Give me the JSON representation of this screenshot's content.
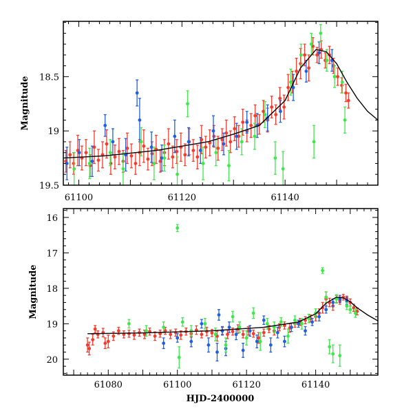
{
  "chart_data": [
    {
      "type": "scatter",
      "panel": "top",
      "title": "",
      "xlabel": "",
      "ylabel": "Magnitude",
      "xlim": [
        61097,
        61158
      ],
      "ylim": [
        19.5,
        17.99
      ],
      "y_inverted": true,
      "xticks": [
        61100,
        61120,
        61140
      ],
      "xtick_labels": [
        "61100",
        "61120",
        "61140"
      ],
      "yticks": [
        18.5,
        19,
        19.5
      ],
      "ytick_labels": [
        "18.5",
        "19",
        "19.5"
      ],
      "grid": false,
      "legend": "none",
      "fit_curve": {
        "name": "model fit",
        "color": "#000000",
        "x": [
          61097,
          61105,
          61115,
          61125,
          61130,
          61135,
          61140,
          61143,
          61146,
          61148,
          61150,
          61152,
          61154,
          61156,
          61158
        ],
        "y": [
          19.25,
          19.23,
          19.18,
          19.1,
          19.03,
          18.95,
          18.72,
          18.42,
          18.25,
          18.27,
          18.38,
          18.55,
          18.7,
          18.82,
          18.9
        ]
      },
      "series": [
        {
          "name": "red",
          "color": "#f23c2e",
          "x": [
            61097.5,
            61098.3,
            61099,
            61099.8,
            61100.6,
            61101.4,
            61102.2,
            61103,
            61103.8,
            61104.6,
            61105.4,
            61106.2,
            61107,
            61107.8,
            61108.6,
            61109.4,
            61110.2,
            61111,
            61111.8,
            61112.6,
            61113.4,
            61114.2,
            61115,
            61115.8,
            61116.6,
            61117.4,
            61118.2,
            61119,
            61119.8,
            61120.6,
            61121.4,
            61122.2,
            61123,
            61123.8,
            61124.6,
            61125.4,
            61126.2,
            61127,
            61127.8,
            61128.6,
            61129.4,
            61130.2,
            61131,
            61131.8,
            61132.6,
            61133.4,
            61134.2,
            61135,
            61135.8,
            61136.6,
            61137.4,
            61138.2,
            61139,
            61139.8,
            61140.6,
            61141.4,
            61142.2,
            61143,
            61143.8,
            61144.6,
            61145.4,
            61146.2,
            61147,
            61147.8,
            61148.6,
            61149.4,
            61150.2,
            61151,
            61151.8,
            61152.3
          ],
          "y": [
            19.28,
            19.22,
            19.3,
            19.18,
            19.25,
            19.2,
            19.32,
            19.15,
            19.27,
            19.22,
            19.12,
            19.3,
            19.24,
            19.19,
            19.28,
            19.16,
            19.23,
            19.3,
            19.2,
            19.14,
            19.26,
            19.21,
            19.17,
            19.28,
            19.2,
            19.12,
            19.24,
            19.19,
            19.15,
            19.22,
            19.1,
            19.18,
            19.24,
            19.08,
            19.15,
            19.11,
            19.05,
            19.16,
            19.08,
            19.02,
            19.1,
            18.98,
            19.05,
            18.92,
            19.0,
            18.95,
            18.86,
            18.94,
            18.82,
            18.9,
            18.78,
            18.85,
            18.7,
            18.78,
            18.6,
            18.55,
            18.45,
            18.38,
            18.3,
            18.42,
            18.22,
            18.3,
            18.25,
            18.35,
            18.3,
            18.4,
            18.5,
            18.58,
            18.65,
            18.72
          ],
          "err": [
            0.1,
            0.12,
            0.1,
            0.14,
            0.11,
            0.12,
            0.1,
            0.15,
            0.1,
            0.12,
            0.13,
            0.1,
            0.11,
            0.12,
            0.1,
            0.14,
            0.11,
            0.1,
            0.12,
            0.15,
            0.1,
            0.11,
            0.13,
            0.1,
            0.12,
            0.14,
            0.1,
            0.11,
            0.13,
            0.1,
            0.12,
            0.1,
            0.11,
            0.13,
            0.1,
            0.12,
            0.1,
            0.11,
            0.1,
            0.12,
            0.1,
            0.11,
            0.1,
            0.12,
            0.1,
            0.11,
            0.1,
            0.09,
            0.1,
            0.11,
            0.1,
            0.09,
            0.1,
            0.11,
            0.12,
            0.1,
            0.12,
            0.14,
            0.1,
            0.12,
            0.08,
            0.07,
            0.08,
            0.07,
            0.08,
            0.07,
            0.08,
            0.07,
            0.08,
            0.07
          ]
        },
        {
          "name": "blue",
          "color": "#1f5fe0",
          "x": [
            61097.7,
            61100.1,
            61102.6,
            61105.1,
            61106.6,
            61109.1,
            61111.3,
            61111.8,
            61114.1,
            61116.1,
            61118.6,
            61121.3,
            61123.6,
            61126.1,
            61128.1,
            61130.6,
            61132.6,
            61134.6,
            61136.6,
            61139.1,
            61141.6,
            61144.1,
            61146.6,
            61149.1
          ],
          "y": [
            19.3,
            19.2,
            19.28,
            18.95,
            19.1,
            19.22,
            18.65,
            18.9,
            19.15,
            19.25,
            19.05,
            19.1,
            19.18,
            19.0,
            19.12,
            19.05,
            18.92,
            18.95,
            18.88,
            18.82,
            18.6,
            18.45,
            18.28,
            18.35
          ],
          "err": [
            0.15,
            0.12,
            0.14,
            0.1,
            0.12,
            0.15,
            0.12,
            0.2,
            0.14,
            0.12,
            0.15,
            0.13,
            0.12,
            0.14,
            0.1,
            0.12,
            0.1,
            0.11,
            0.12,
            0.1,
            0.12,
            0.1,
            0.1,
            0.1
          ]
        },
        {
          "name": "green",
          "color": "#3ee84a",
          "x": [
            61099.1,
            61102.1,
            61106.1,
            61108.6,
            61112.1,
            61114.6,
            61116.6,
            61119.1,
            61121.1,
            61124.1,
            61126.6,
            61129.1,
            61131.6,
            61134.1,
            61136.1,
            61138.1,
            61139.6,
            61141.1,
            61143.1,
            61145.1,
            61146.9,
            61148.1,
            61149.6,
            61151.1,
            61151.6,
            61145.6
          ],
          "y": [
            19.35,
            19.3,
            19.2,
            19.35,
            19.1,
            19.3,
            19.25,
            19.4,
            18.75,
            19.3,
            19.2,
            19.32,
            19.1,
            19.05,
            18.85,
            19.25,
            19.35,
            18.55,
            18.3,
            18.2,
            18.1,
            18.35,
            18.5,
            18.55,
            18.9,
            19.1
          ],
          "err": [
            0.15,
            0.14,
            0.12,
            0.15,
            0.13,
            0.15,
            0.12,
            0.16,
            0.12,
            0.15,
            0.12,
            0.14,
            0.12,
            0.12,
            0.12,
            0.15,
            0.16,
            0.12,
            0.1,
            0.1,
            0.08,
            0.1,
            0.1,
            0.1,
            0.12,
            0.15
          ]
        }
      ]
    },
    {
      "type": "scatter",
      "panel": "bottom",
      "title": "",
      "xlabel": "HJD-2400000",
      "ylabel": "Magnitude",
      "xlim": [
        61067,
        61158
      ],
      "ylim": [
        20.45,
        15.75
      ],
      "y_inverted": true,
      "xticks": [
        61080,
        61100,
        61120,
        61140
      ],
      "xtick_labels": [
        "61080",
        "61100",
        "61120",
        "61140"
      ],
      "yticks": [
        16,
        17,
        18,
        19,
        20
      ],
      "ytick_labels": [
        "16",
        "17",
        "18",
        "19",
        "20"
      ],
      "grid": false,
      "legend": "none",
      "fit_curve": {
        "name": "model fit",
        "color": "#000000",
        "x": [
          61074,
          61090,
          61110,
          61125,
          61135,
          61140,
          61143,
          61146,
          61148,
          61150,
          61152,
          61155,
          61158
        ],
        "y": [
          19.28,
          19.26,
          19.2,
          19.1,
          18.95,
          18.72,
          18.42,
          18.25,
          18.27,
          18.38,
          18.55,
          18.75,
          18.92
        ]
      },
      "series": [
        {
          "name": "red",
          "color": "#f23c2e",
          "x": [
            61074,
            61075.5,
            61077,
            61078.5,
            61080,
            61081.5,
            61083,
            61084.5,
            61086,
            61087.5,
            61089,
            61090.5,
            61092,
            61093.5,
            61095,
            61096.5,
            61098,
            61099.5,
            61101,
            61102.5,
            61104,
            61105.5,
            61107,
            61108.5,
            61110,
            61111.5,
            61113,
            61114.5,
            61116,
            61117.5,
            61119,
            61120.5,
            61122,
            61123.5,
            61125,
            61126.5,
            61128,
            61129.5,
            61131,
            61132.5,
            61134,
            61135.5,
            61137,
            61138.5,
            61140,
            61141,
            61142,
            61143,
            61144,
            61145,
            61146,
            61147,
            61148,
            61149,
            61150,
            61151,
            61152,
            61074.5,
            61076.2,
            61079.1
          ],
          "y": [
            19.6,
            19.45,
            19.3,
            19.25,
            19.5,
            19.35,
            19.2,
            19.3,
            19.28,
            19.32,
            19.25,
            19.3,
            19.22,
            19.35,
            19.28,
            19.2,
            19.3,
            19.25,
            19.32,
            19.22,
            19.28,
            19.18,
            19.3,
            19.22,
            19.26,
            19.35,
            19.2,
            19.3,
            19.22,
            19.15,
            19.3,
            19.2,
            19.28,
            19.4,
            19.25,
            19.15,
            19.2,
            19.1,
            19.05,
            19.12,
            19.0,
            18.95,
            18.9,
            18.85,
            18.8,
            18.7,
            18.55,
            18.3,
            18.4,
            18.5,
            18.3,
            18.35,
            18.25,
            18.3,
            18.4,
            18.55,
            18.65,
            19.7,
            19.15,
            19.55
          ],
          "err": [
            0.2,
            0.15,
            0.1,
            0.12,
            0.18,
            0.12,
            0.1,
            0.1,
            0.1,
            0.12,
            0.1,
            0.12,
            0.1,
            0.12,
            0.1,
            0.1,
            0.12,
            0.1,
            0.12,
            0.1,
            0.1,
            0.12,
            0.1,
            0.12,
            0.1,
            0.14,
            0.1,
            0.12,
            0.1,
            0.12,
            0.1,
            0.12,
            0.1,
            0.15,
            0.1,
            0.1,
            0.12,
            0.1,
            0.1,
            0.12,
            0.1,
            0.1,
            0.1,
            0.1,
            0.12,
            0.12,
            0.15,
            0.2,
            0.12,
            0.12,
            0.1,
            0.1,
            0.08,
            0.08,
            0.1,
            0.1,
            0.1,
            0.18,
            0.1,
            0.15
          ]
        },
        {
          "name": "blue",
          "color": "#1f5fe0",
          "x": [
            61096,
            61100,
            61104,
            61107,
            61109,
            61111.5,
            61112,
            61113,
            61114,
            61115,
            61117,
            61119,
            61121,
            61123,
            61125,
            61127,
            61129,
            61131,
            61133,
            61135,
            61137,
            61139,
            61141,
            61143,
            61145,
            61147,
            61149
          ],
          "y": [
            19.55,
            19.4,
            19.5,
            19.0,
            19.6,
            19.8,
            18.75,
            19.2,
            19.7,
            19.1,
            19.3,
            19.75,
            19.2,
            19.5,
            18.9,
            19.6,
            19.25,
            19.5,
            19.1,
            19.0,
            19.2,
            18.95,
            18.8,
            18.6,
            18.4,
            18.3,
            18.35
          ],
          "err": [
            0.15,
            0.12,
            0.15,
            0.12,
            0.2,
            0.25,
            0.15,
            0.12,
            0.2,
            0.15,
            0.15,
            0.2,
            0.15,
            0.18,
            0.12,
            0.2,
            0.15,
            0.15,
            0.12,
            0.1,
            0.12,
            0.1,
            0.12,
            0.1,
            0.1,
            0.1,
            0.1
          ]
        },
        {
          "name": "green",
          "color": "#3ee84a",
          "x": [
            61086,
            61091,
            61096,
            61100.5,
            61101.5,
            61104,
            61108,
            61111,
            61114,
            61116,
            61118,
            61120,
            61122,
            61124,
            61126,
            61128,
            61130,
            61132,
            61134,
            61136,
            61138,
            61140,
            61142,
            61143,
            61144,
            61145,
            61146,
            61147,
            61149,
            61150,
            61151.5,
            61100
          ],
          "y": [
            19.0,
            19.2,
            19.1,
            19.95,
            18.95,
            19.2,
            19.0,
            19.3,
            19.6,
            18.8,
            19.1,
            19.4,
            18.7,
            19.5,
            19.0,
            19.1,
            18.95,
            19.35,
            18.9,
            19.0,
            18.85,
            18.7,
            17.5,
            18.25,
            19.65,
            19.85,
            18.3,
            19.9,
            18.5,
            18.6,
            18.7,
            16.3
          ],
          "err": [
            0.12,
            0.15,
            0.15,
            0.3,
            0.12,
            0.15,
            0.15,
            0.18,
            0.2,
            0.15,
            0.15,
            0.2,
            0.15,
            0.25,
            0.15,
            0.15,
            0.12,
            0.2,
            0.12,
            0.15,
            0.12,
            0.12,
            0.08,
            0.15,
            0.2,
            0.25,
            0.12,
            0.3,
            0.1,
            0.1,
            0.12,
            0.1
          ]
        }
      ]
    }
  ]
}
